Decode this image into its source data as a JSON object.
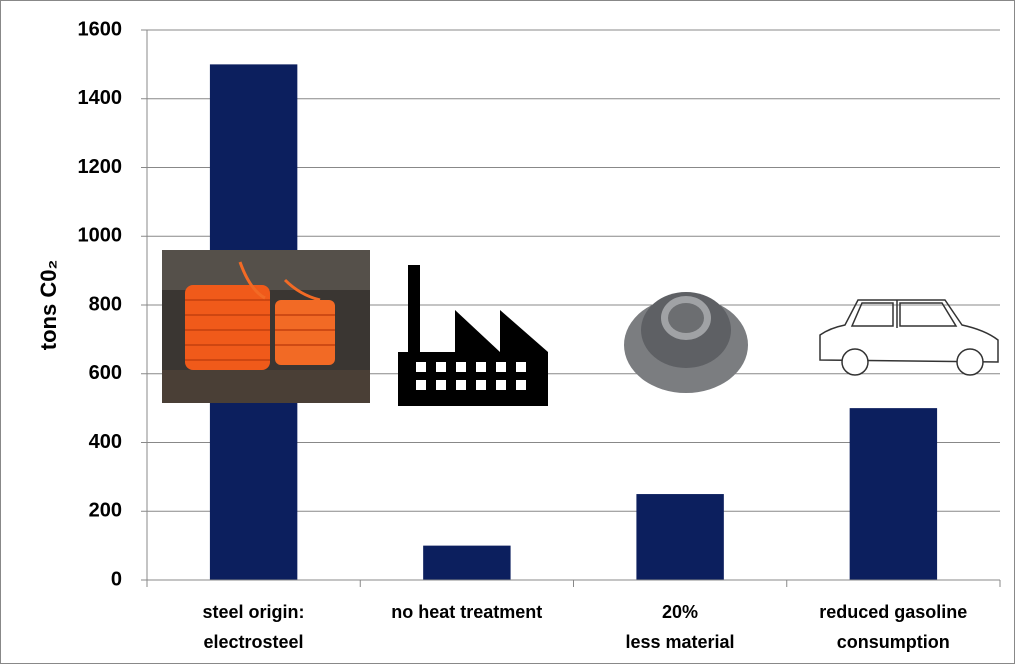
{
  "chart_data": {
    "type": "bar",
    "y_label": "tons C0₂",
    "categories": [
      "steel origin:\nelectrosteel",
      "no heat treatment",
      "20%\nless material",
      "reduced gasoline\nconsumption"
    ],
    "values": [
      1500,
      100,
      250,
      500
    ],
    "color": "#0c1f5e",
    "ylim": [
      0,
      1600
    ],
    "yticks": [
      0,
      200,
      400,
      600,
      800,
      1000,
      1200,
      1400,
      1600
    ],
    "grid": true
  }
}
